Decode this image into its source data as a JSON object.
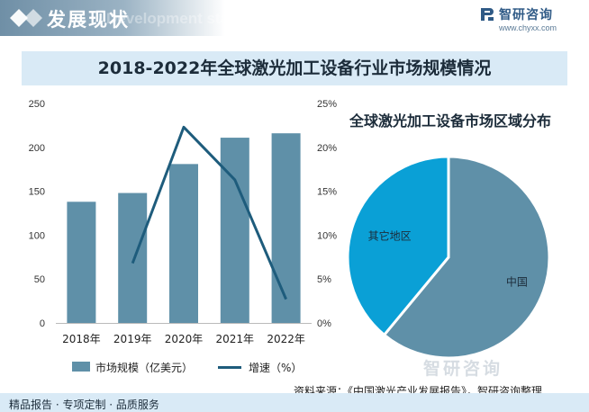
{
  "header": {
    "title": "发展现状",
    "subtitle_watermark": "Development status",
    "brand_name": "智研咨询",
    "brand_url": "www.chyxx.com"
  },
  "colors": {
    "bar": "#5f90a8",
    "line": "#1e5c7c",
    "pie_china": "#5f90a8",
    "pie_other": "#0aa0d6",
    "title_band": "#d9eaf6"
  },
  "chart_data": [
    {
      "type": "bar",
      "title": "2018-2022年全球激光加工设备行业市场规模情况",
      "categories": [
        "2018年",
        "2019年",
        "2020年",
        "2021年",
        "2022年"
      ],
      "series": [
        {
          "name": "市场规模（亿美元）",
          "type": "bar",
          "axis": "left",
          "values": [
            138,
            148,
            181,
            211,
            216
          ]
        },
        {
          "name": "增速（%）",
          "type": "line",
          "axis": "right",
          "values": [
            null,
            6.8,
            22.3,
            16.3,
            2.7
          ]
        }
      ],
      "y_left": {
        "min": 0,
        "max": 250,
        "ticks": [
          "0",
          "50",
          "100",
          "150",
          "200",
          "250"
        ]
      },
      "y_right": {
        "min": 0,
        "max": 25,
        "ticks": [
          "0%",
          "5%",
          "10%",
          "15%",
          "20%",
          "25%"
        ]
      },
      "grid": false,
      "legend": "bottom"
    },
    {
      "type": "pie",
      "title": "全球激光加工设备市场区域分布",
      "labels": [
        "中国",
        "其它地区"
      ],
      "values": [
        61,
        39
      ]
    }
  ],
  "footer": {
    "watermark": "智研咨询",
    "source": "资料来源：《中国激光产业发展报告》，智研咨询整理",
    "slogan": "精品报告 · 专项定制 · 品质服务"
  }
}
